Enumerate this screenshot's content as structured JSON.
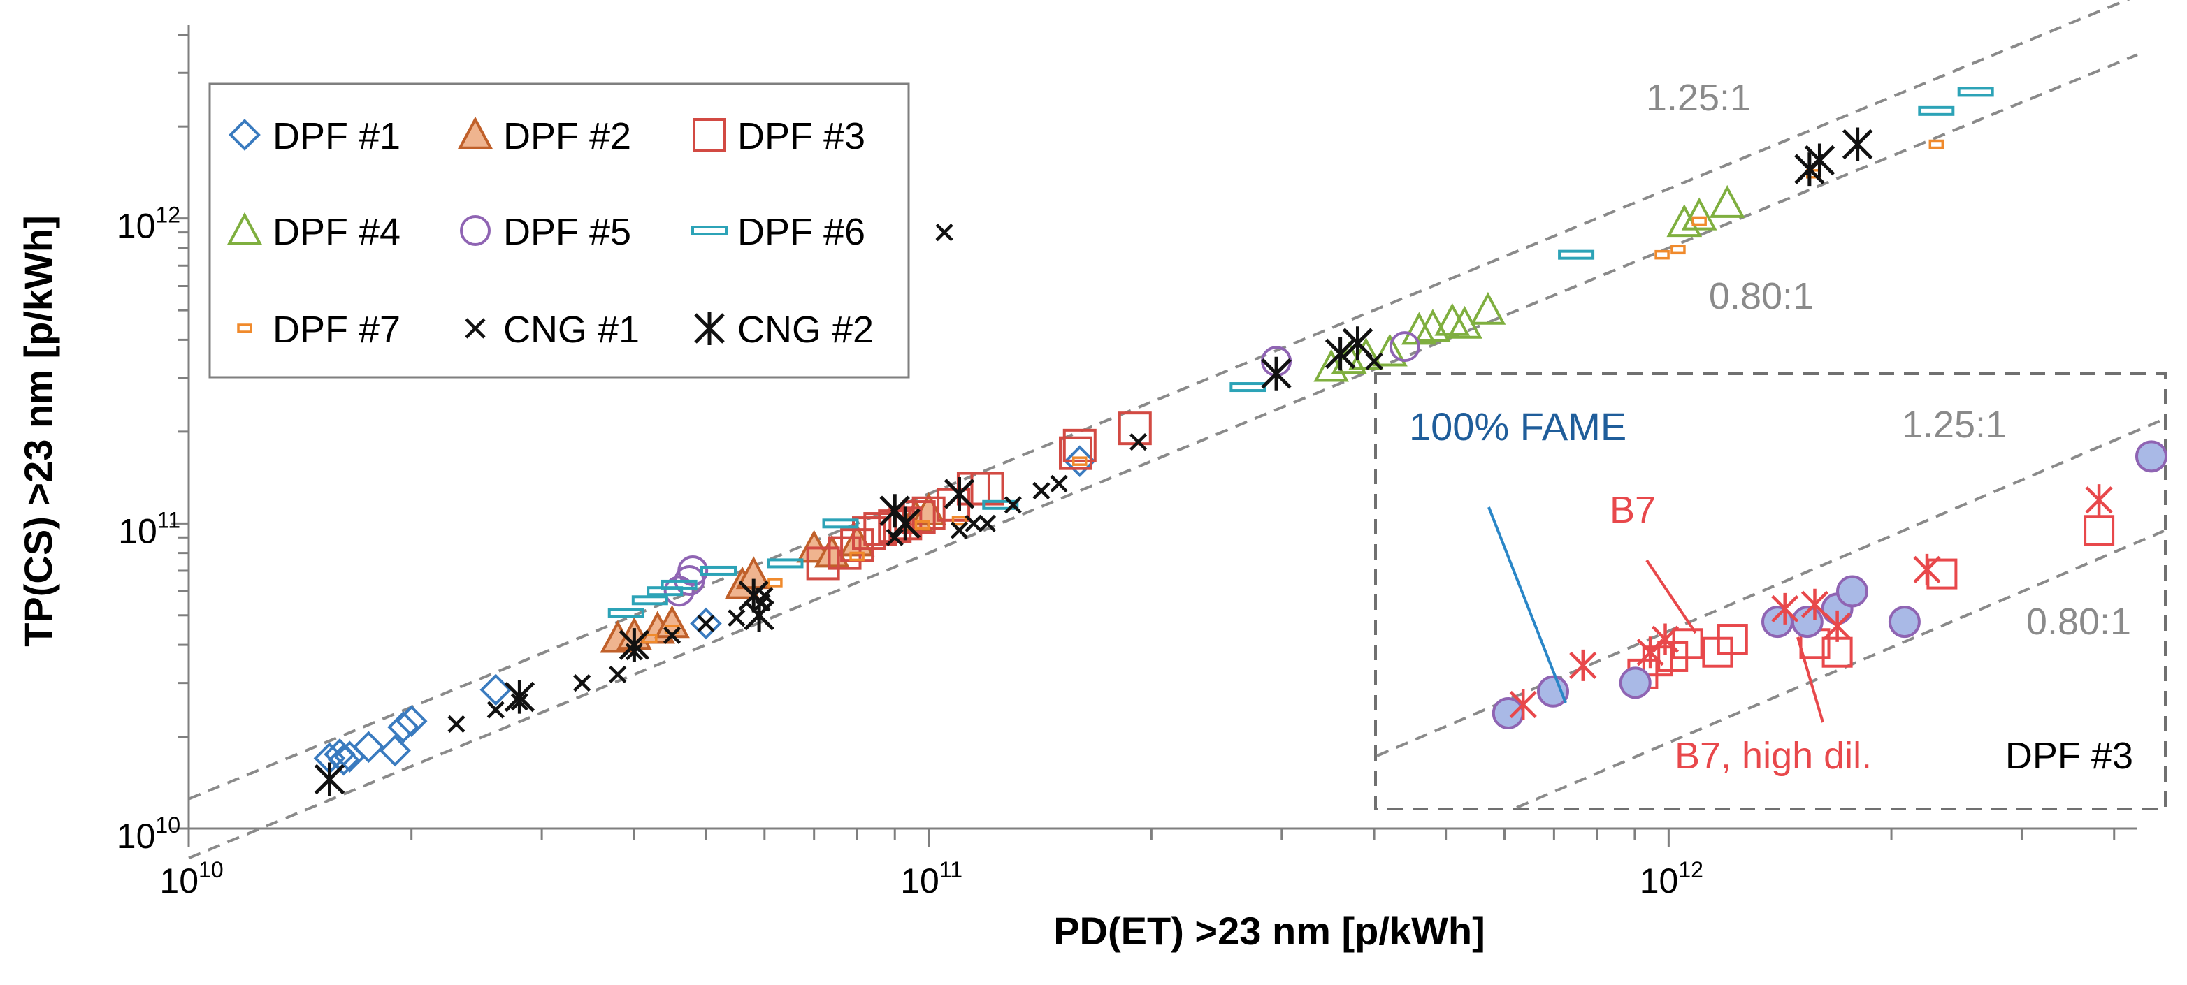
{
  "chart_data": {
    "type": "scatter",
    "xscale": "log",
    "yscale": "log",
    "xlabel": "PD(ET) >23 nm [p/kWh]",
    "ylabel": "TP(CS) >23 nm [p/kWh]",
    "xlim": [
      10000000000.0,
      4300000000000.0
    ],
    "ylim": [
      10000000000.0,
      4300000000000.0
    ],
    "x_ticks": [
      {
        "base": "10",
        "exp": "10",
        "value": 10000000000.0
      },
      {
        "base": "10",
        "exp": "11",
        "value": 100000000000.0
      },
      {
        "base": "10",
        "exp": "12",
        "value": 1000000000000.0
      }
    ],
    "y_ticks": [
      {
        "base": "10",
        "exp": "10",
        "value": 10000000000.0
      },
      {
        "base": "10",
        "exp": "11",
        "value": 100000000000.0
      },
      {
        "base": "10",
        "exp": "12",
        "value": 1000000000000.0
      }
    ],
    "grid": false,
    "legend_position": "top-left",
    "colors": {
      "dpf1": "#3a7bbf",
      "dpf2": "#c0602a",
      "dpf2_fill": "#efb48f",
      "dpf3": "#d24a43",
      "dpf4": "#7faf3f",
      "dpf5": "#8f64b3",
      "dpf6": "#2ca3b7",
      "dpf7": "#f08a2c",
      "cng": "#111111",
      "ref": "#8a8a8a",
      "inset_dpf5_fill": "#a9b9e6",
      "b7": "#e8484b",
      "fame": "#1f5d9a"
    },
    "reference_lines": [
      {
        "ratio": 1.25,
        "label": "1.25:1"
      },
      {
        "ratio": 0.8,
        "label": "0.80:1"
      }
    ],
    "series": [
      {
        "name": "DPF #1",
        "marker": "diamond",
        "color": "#3a7bbf",
        "points": [
          [
            15500000000.0,
            17000000000.0
          ],
          [
            16000000000.0,
            17500000000.0
          ],
          [
            16200000000.0,
            16800000000.0
          ],
          [
            16500000000.0,
            17200000000.0
          ],
          [
            17500000000.0,
            18500000000.0
          ],
          [
            19000000000.0,
            18000000000.0
          ],
          [
            19500000000.0,
            21500000000.0
          ],
          [
            20000000000.0,
            22500000000.0
          ],
          [
            26000000000.0,
            28500000000.0
          ],
          [
            50000000000.0,
            47000000000.0
          ],
          [
            160000000000.0,
            160000000000.0
          ]
        ]
      },
      {
        "name": "DPF #2",
        "marker": "triangle",
        "color": "#c0602a",
        "fill": "#efb48f",
        "points": [
          [
            38000000000.0,
            42000000000.0
          ],
          [
            40000000000.0,
            43000000000.0
          ],
          [
            43000000000.0,
            45000000000.0
          ],
          [
            45000000000.0,
            47000000000.0
          ],
          [
            56000000000.0,
            63000000000.0
          ],
          [
            58000000000.0,
            68000000000.0
          ],
          [
            70000000000.0,
            83000000000.0
          ],
          [
            74000000000.0,
            80000000000.0
          ],
          [
            80000000000.0,
            87000000000.0
          ],
          [
            96000000000.0,
            105000000000.0
          ],
          [
            100000000000.0,
            110000000000.0
          ]
        ]
      },
      {
        "name": "DPF #3",
        "marker": "square",
        "color": "#d24a43",
        "points": [
          [
            72000000000.0,
            74000000000.0
          ],
          [
            77000000000.0,
            80000000000.0
          ],
          [
            80000000000.0,
            85000000000.0
          ],
          [
            83000000000.0,
            93000000000.0
          ],
          [
            86000000000.0,
            96000000000.0
          ],
          [
            90000000000.0,
            98000000000.0
          ],
          [
            93000000000.0,
            100000000000.0
          ],
          [
            97000000000.0,
            105000000000.0
          ],
          [
            100000000000.0,
            108000000000.0
          ],
          [
            108000000000.0,
            115000000000.0
          ],
          [
            115000000000.0,
            130000000000.0
          ],
          [
            120000000000.0,
            130000000000.0
          ],
          [
            158000000000.0,
            170000000000.0
          ],
          [
            160000000000.0,
            180000000000.0
          ],
          [
            190000000000.0,
            205000000000.0
          ]
        ]
      },
      {
        "name": "DPF #4",
        "marker": "triangle",
        "color": "#7faf3f",
        "points": [
          [
            350000000000.0,
            325000000000.0
          ],
          [
            370000000000.0,
            345000000000.0
          ],
          [
            390000000000.0,
            355000000000.0
          ],
          [
            420000000000.0,
            365000000000.0
          ],
          [
            460000000000.0,
            430000000000.0
          ],
          [
            480000000000.0,
            440000000000.0
          ],
          [
            510000000000.0,
            460000000000.0
          ],
          [
            530000000000.0,
            450000000000.0
          ],
          [
            570000000000.0,
            500000000000.0
          ],
          [
            1050000000000.0,
            970000000000.0
          ],
          [
            1100000000000.0,
            1020000000000.0
          ],
          [
            1200000000000.0,
            1120000000000.0
          ]
        ]
      },
      {
        "name": "DPF #5",
        "marker": "circle",
        "color": "#8f64b3",
        "points": [
          [
            46000000000.0,
            60000000000.0
          ],
          [
            47500000000.0,
            65000000000.0
          ],
          [
            48000000000.0,
            70000000000.0
          ],
          [
            295000000000.0,
            340000000000.0
          ],
          [
            440000000000.0,
            380000000000.0
          ]
        ]
      },
      {
        "name": "DPF #6",
        "marker": "dash",
        "color": "#2ca3b7",
        "points": [
          [
            39000000000.0,
            51000000000.0
          ],
          [
            42000000000.0,
            56000000000.0
          ],
          [
            44000000000.0,
            60000000000.0
          ],
          [
            46000000000.0,
            63000000000.0
          ],
          [
            52000000000.0,
            70000000000.0
          ],
          [
            64000000000.0,
            74000000000.0
          ],
          [
            76000000000.0,
            100000000000.0
          ],
          [
            125000000000.0,
            115000000000.0
          ],
          [
            270000000000.0,
            280000000000.0
          ],
          [
            750000000000.0,
            760000000000.0
          ],
          [
            2300000000000.0,
            2250000000000.0
          ],
          [
            2600000000000.0,
            2600000000000.0
          ]
        ]
      },
      {
        "name": "DPF #7",
        "marker": "small-rect",
        "color": "#f08a2c",
        "points": [
          [
            42000000000.0,
            42000000000.0
          ],
          [
            45000000000.0,
            45000000000.0
          ],
          [
            62000000000.0,
            64000000000.0
          ],
          [
            80000000000.0,
            78000000000.0
          ],
          [
            98000000000.0,
            99000000000.0
          ],
          [
            110000000000.0,
            102000000000.0
          ],
          [
            160000000000.0,
            160000000000.0
          ],
          [
            980000000000.0,
            760000000000.0
          ],
          [
            1030000000000.0,
            790000000000.0
          ],
          [
            1100000000000.0,
            980000000000.0
          ],
          [
            1570000000000.0,
            1400000000000.0
          ],
          [
            2300000000000.0,
            1750000000000.0
          ]
        ]
      },
      {
        "name": "CNG #1",
        "marker": "x",
        "color": "#111111",
        "points": [
          [
            15500000000.0,
            14500000000.0
          ],
          [
            23000000000.0,
            22000000000.0
          ],
          [
            26000000000.0,
            24500000000.0
          ],
          [
            28000000000.0,
            26000000000.0
          ],
          [
            34000000000.0,
            30000000000.0
          ],
          [
            38000000000.0,
            32000000000.0
          ],
          [
            40000000000.0,
            38000000000.0
          ],
          [
            45000000000.0,
            43000000000.0
          ],
          [
            50000000000.0,
            47000000000.0
          ],
          [
            55000000000.0,
            49000000000.0
          ],
          [
            59000000000.0,
            50000000000.0
          ],
          [
            59500000000.0,
            55000000000.0
          ],
          [
            60000000000.0,
            58000000000.0
          ],
          [
            90000000000.0,
            90000000000.0
          ],
          [
            105000000000.0,
            900000000000.0
          ],
          [
            110000000000.0,
            95000000000.0
          ],
          [
            115000000000.0,
            100000000000.0
          ],
          [
            120000000000.0,
            100000000000.0
          ],
          [
            130000000000.0,
            115000000000.0
          ],
          [
            142000000000.0,
            128000000000.0
          ],
          [
            150000000000.0,
            135000000000.0
          ],
          [
            192000000000.0,
            185000000000.0
          ],
          [
            400000000000.0,
            340000000000.0
          ]
        ]
      },
      {
        "name": "CNG #2",
        "marker": "asterisk",
        "color": "#111111",
        "points": [
          [
            15500000000.0,
            14500000000.0
          ],
          [
            28000000000.0,
            27000000000.0
          ],
          [
            40000000000.0,
            40000000000.0
          ],
          [
            58000000000.0,
            58000000000.0
          ],
          [
            59000000000.0,
            50000000000.0
          ],
          [
            90000000000.0,
            110000000000.0
          ],
          [
            93000000000.0,
            100000000000.0
          ],
          [
            110000000000.0,
            125000000000.0
          ],
          [
            295000000000.0,
            310000000000.0
          ],
          [
            360000000000.0,
            360000000000.0
          ],
          [
            380000000000.0,
            390000000000.0
          ],
          [
            1550000000000.0,
            1450000000000.0
          ],
          [
            1600000000000.0,
            1550000000000.0
          ],
          [
            1800000000000.0,
            1750000000000.0
          ]
        ]
      }
    ],
    "inset": {
      "title": "DPF #3",
      "annotations": [
        "100% FAME",
        "B7",
        "B7, high dil."
      ],
      "ref_labels": [
        "1.25:1",
        "0.80:1"
      ],
      "circles": [
        [
          0.14,
          0.22
        ],
        [
          0.2,
          0.27
        ],
        [
          0.31,
          0.29
        ],
        [
          0.5,
          0.43
        ],
        [
          0.54,
          0.43
        ],
        [
          0.58,
          0.46
        ],
        [
          0.6,
          0.5
        ],
        [
          0.67,
          0.43
        ],
        [
          1.0,
          0.81
        ]
      ],
      "b7_stars": [
        [
          0.16,
          0.24
        ],
        [
          0.24,
          0.33
        ],
        [
          0.33,
          0.36
        ],
        [
          0.35,
          0.39
        ],
        [
          0.51,
          0.46
        ],
        [
          0.55,
          0.47
        ],
        [
          0.58,
          0.42
        ],
        [
          0.7,
          0.55
        ],
        [
          0.93,
          0.71
        ]
      ],
      "b7_squares": [
        [
          0.32,
          0.31
        ],
        [
          0.34,
          0.34
        ],
        [
          0.36,
          0.35
        ],
        [
          0.38,
          0.38
        ],
        [
          0.42,
          0.36
        ],
        [
          0.44,
          0.39
        ],
        [
          0.55,
          0.38
        ],
        [
          0.58,
          0.36
        ],
        [
          0.72,
          0.54
        ],
        [
          0.93,
          0.64
        ]
      ]
    }
  }
}
